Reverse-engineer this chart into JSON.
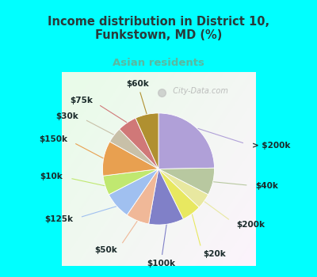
{
  "title": "Income distribution in District 10,\nFunkstown, MD (%)",
  "subtitle": "Asian residents",
  "title_color": "#2a3a3a",
  "subtitle_color": "#5ab8a0",
  "background_top": "#00ffff",
  "watermark": "  City-Data.com",
  "labels": [
    "> $200k",
    "$40k",
    "$200k",
    "$20k",
    "$100k",
    "$50k",
    "$125k",
    "$10k",
    "$150k",
    "$30k",
    "$75k",
    "$60k"
  ],
  "values": [
    22,
    7,
    4,
    5,
    9,
    6,
    7,
    5,
    9,
    4,
    5,
    6
  ],
  "colors": [
    "#b0a0d8",
    "#b8c8a0",
    "#e8e8a0",
    "#e8e860",
    "#8080c8",
    "#f0b898",
    "#a0c0f0",
    "#c0e870",
    "#e8a050",
    "#c8c0a8",
    "#d07878",
    "#b09030"
  ],
  "label_fontsize": 7.5,
  "figsize": [
    4.0,
    3.5
  ],
  "dpi": 100
}
